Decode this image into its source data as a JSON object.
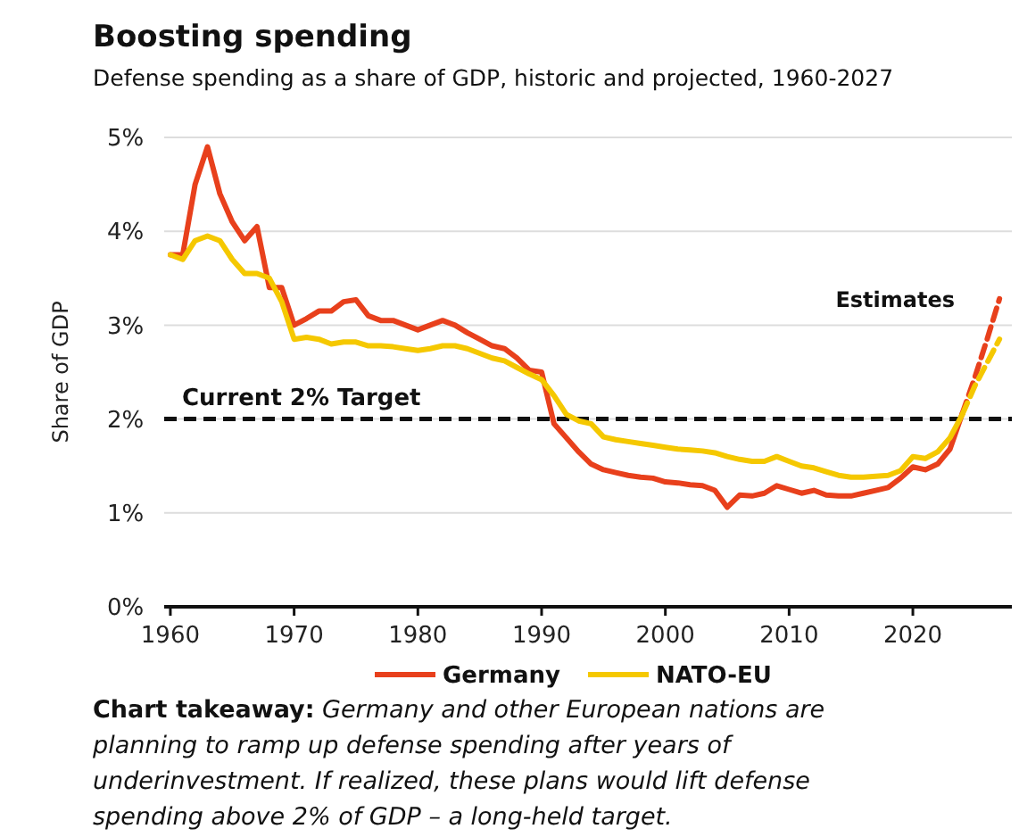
{
  "chart_data": {
    "type": "line",
    "title": "Boosting spending",
    "subtitle": "Defense spending as a share of GDP, historic and projected, 1960-2027",
    "ylabel": "Share of GDP",
    "xlim": [
      1959.5,
      2028
    ],
    "xticks": [
      1960,
      1970,
      1980,
      1990,
      2000,
      2010,
      2020
    ],
    "ylim": [
      0,
      5
    ],
    "yticks": [
      {
        "value": 0,
        "label": "0%"
      },
      {
        "value": 1,
        "label": "1%"
      },
      {
        "value": 2,
        "label": "2%"
      },
      {
        "value": 3,
        "label": "3%"
      },
      {
        "value": 4,
        "label": "4%"
      },
      {
        "value": 5,
        "label": "5%"
      }
    ],
    "grid": "y",
    "legend": "bottom",
    "line_style": "solid",
    "marker": "none",
    "x": [
      1960,
      1961,
      1962,
      1963,
      1964,
      1965,
      1966,
      1967,
      1968,
      1969,
      1970,
      1971,
      1972,
      1973,
      1974,
      1975,
      1976,
      1977,
      1978,
      1979,
      1980,
      1981,
      1982,
      1983,
      1984,
      1985,
      1986,
      1987,
      1988,
      1989,
      1990,
      1991,
      1992,
      1993,
      1994,
      1995,
      1996,
      1997,
      1998,
      1999,
      2000,
      2001,
      2002,
      2003,
      2004,
      2005,
      2006,
      2007,
      2008,
      2009,
      2010,
      2011,
      2012,
      2013,
      2014,
      2015,
      2016,
      2017,
      2018,
      2019,
      2020,
      2021,
      2022,
      2023,
      2024
    ],
    "series": [
      {
        "name": "Germany",
        "color": "#e8401c",
        "values": [
          3.75,
          3.75,
          4.5,
          4.9,
          4.4,
          4.1,
          3.9,
          4.05,
          3.4,
          3.4,
          3.0,
          3.07,
          3.15,
          3.15,
          3.25,
          3.27,
          3.1,
          3.05,
          3.05,
          3.0,
          2.95,
          3.0,
          3.05,
          3.0,
          2.92,
          2.85,
          2.78,
          2.75,
          2.65,
          2.52,
          2.5,
          1.95,
          1.8,
          1.65,
          1.52,
          1.46,
          1.43,
          1.4,
          1.38,
          1.37,
          1.33,
          1.32,
          1.3,
          1.29,
          1.24,
          1.06,
          1.19,
          1.18,
          1.21,
          1.29,
          1.25,
          1.21,
          1.24,
          1.19,
          1.18,
          1.18,
          1.21,
          1.24,
          1.27,
          1.37,
          1.49,
          1.46,
          1.52,
          1.68,
          2.06
        ]
      },
      {
        "name": "NATO-EU",
        "color": "#f5c800",
        "values": [
          3.75,
          3.7,
          3.9,
          3.95,
          3.9,
          3.7,
          3.55,
          3.55,
          3.5,
          3.25,
          2.85,
          2.87,
          2.85,
          2.8,
          2.82,
          2.82,
          2.78,
          2.78,
          2.77,
          2.75,
          2.73,
          2.75,
          2.78,
          2.78,
          2.75,
          2.7,
          2.65,
          2.62,
          2.55,
          2.48,
          2.42,
          2.25,
          2.05,
          1.98,
          1.95,
          1.81,
          1.78,
          1.76,
          1.74,
          1.72,
          1.7,
          1.68,
          1.67,
          1.66,
          1.64,
          1.6,
          1.57,
          1.55,
          1.55,
          1.6,
          1.55,
          1.5,
          1.48,
          1.44,
          1.4,
          1.38,
          1.38,
          1.39,
          1.4,
          1.45,
          1.6,
          1.58,
          1.65,
          1.8,
          2.05
        ]
      },
      {
        "color": "#e8401c",
        "line_style": "dashed",
        "x": [
          2024,
          2025,
          2026,
          2027
        ],
        "values": [
          2.06,
          2.44,
          2.85,
          3.28
        ]
      },
      {
        "color": "#f5c800",
        "line_style": "dashed",
        "x": [
          2024,
          2025,
          2026,
          2027
        ],
        "values": [
          2.05,
          2.35,
          2.6,
          2.85
        ]
      }
    ],
    "ref_lines": [
      {
        "axis": "y",
        "value": 2,
        "label": "Current 2% Target",
        "color": "#111111",
        "line_style": "dashed"
      }
    ],
    "annotations": [
      "Estimates",
      "Chart takeaway: Germany and other European nations are planning to ramp up defense spending after years of underinvestment. If realized, these plans would lift defense spending above 2% of GDP – a long-held target."
    ]
  }
}
